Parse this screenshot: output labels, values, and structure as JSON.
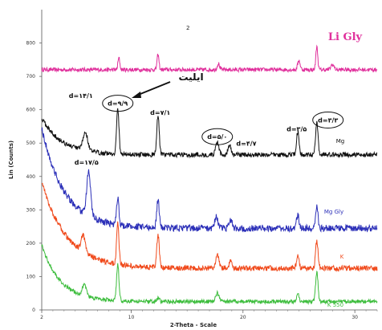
{
  "chart_data": {
    "type": "line",
    "panel_number": "2",
    "xlabel": "2-Theta - Scale",
    "ylabel": "Lin (Counts)",
    "xlim": [
      2,
      32
    ],
    "ylim": [
      0,
      900
    ],
    "x_ticks": [
      2,
      10,
      20,
      30
    ],
    "y_ticks": [
      0,
      100,
      200,
      300,
      400,
      500,
      600,
      700,
      800
    ],
    "series": [
      {
        "name": "Li Gly",
        "color": "#e0309c",
        "baseline": 720,
        "start_level": 720,
        "decay_amp": 0,
        "decay_k": 0.5,
        "noise": 6,
        "peaks": [
          [
            8.9,
            35,
            0.12
          ],
          [
            12.4,
            45,
            0.12
          ],
          [
            17.8,
            18,
            0.15
          ],
          [
            25.0,
            28,
            0.15
          ],
          [
            26.6,
            70,
            0.12
          ],
          [
            28.0,
            15,
            0.2
          ]
        ]
      },
      {
        "name": "Mg",
        "color": "#111111",
        "baseline": 465,
        "start_level": 560,
        "decay_amp": 110,
        "decay_k": 0.55,
        "noise": 7,
        "peaks": [
          [
            5.9,
            55,
            0.3
          ],
          [
            8.8,
            135,
            0.15
          ],
          [
            12.4,
            120,
            0.15
          ],
          [
            17.7,
            35,
            0.2
          ],
          [
            18.8,
            28,
            0.2
          ],
          [
            24.9,
            70,
            0.15
          ],
          [
            26.6,
            100,
            0.15
          ]
        ]
      },
      {
        "name": "Mg Gly",
        "color": "#2b2fb8",
        "baseline": 245,
        "start_level": 560,
        "decay_amp": 300,
        "decay_k": 0.5,
        "noise": 10,
        "peaks": [
          [
            6.2,
            130,
            0.25
          ],
          [
            8.8,
            80,
            0.15
          ],
          [
            12.4,
            85,
            0.15
          ],
          [
            17.6,
            35,
            0.2
          ],
          [
            18.9,
            22,
            0.2
          ],
          [
            24.9,
            40,
            0.15
          ],
          [
            26.6,
            70,
            0.15
          ]
        ]
      },
      {
        "name": "K",
        "color": "#f04a1c",
        "baseline": 125,
        "start_level": 470,
        "decay_amp": 260,
        "decay_k": 0.45,
        "noise": 8,
        "peaks": [
          [
            5.7,
            50,
            0.25
          ],
          [
            8.8,
            120,
            0.15
          ],
          [
            12.4,
            100,
            0.15
          ],
          [
            17.7,
            40,
            0.2
          ],
          [
            18.9,
            20,
            0.2
          ],
          [
            24.9,
            40,
            0.15
          ],
          [
            26.6,
            85,
            0.15
          ]
        ]
      },
      {
        "name": "K 550",
        "color": "#3dbd3d",
        "baseline": 25,
        "start_level": 270,
        "decay_amp": 170,
        "decay_k": 0.6,
        "noise": 6,
        "peaks": [
          [
            5.8,
            35,
            0.25
          ],
          [
            8.8,
            110,
            0.15
          ],
          [
            12.4,
            12,
            0.15
          ],
          [
            17.7,
            25,
            0.2
          ],
          [
            24.9,
            25,
            0.15
          ],
          [
            26.6,
            90,
            0.15
          ]
        ]
      }
    ],
    "annotations": [
      {
        "text": "d=١۴/١",
        "x": 5.5,
        "y": 635,
        "circled": false
      },
      {
        "text": "d=١٧/۵",
        "x": 6.0,
        "y": 435,
        "circled": false
      },
      {
        "text": "d=٩/٩",
        "x": 8.8,
        "y": 612,
        "circled": true
      },
      {
        "text": "d=٧/١",
        "x": 12.6,
        "y": 585,
        "circled": false
      },
      {
        "text": "d=۵/٠",
        "x": 17.7,
        "y": 512,
        "circled": true
      },
      {
        "text": "d=۴/۷",
        "x": 20.3,
        "y": 492,
        "circled": false
      },
      {
        "text": "d=٣/۵",
        "x": 24.8,
        "y": 535,
        "circled": false
      },
      {
        "text": "d=٣/٣",
        "x": 27.6,
        "y": 562,
        "circled": true
      }
    ],
    "mineral_label": "ایلیت"
  }
}
